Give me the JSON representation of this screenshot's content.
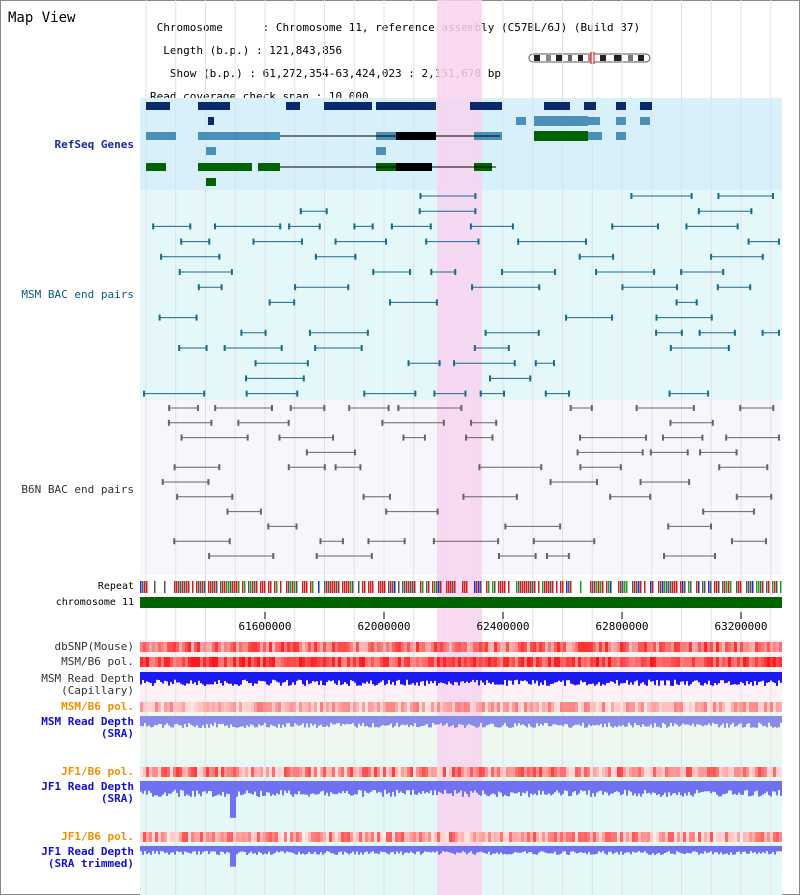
{
  "title": "Map View",
  "info": {
    "chromosome_key": "Chromosome",
    "chromosome_val": "Chromosome 11, reference assembly (C57BL/6J) (Build 37)",
    "length_key": "Length (b.p.)",
    "length_val": "121,843,856",
    "show_key": "Show (b.p.)",
    "show_val": "61,272,354-63,424,023 : 2,151,670 bp",
    "coverage_key": "Read coverage check span",
    "coverage_val": "10,000"
  },
  "tracks": {
    "refseq": "RefSeq Genes",
    "msm_bac": "MSM BAC end pairs",
    "b6n_bac": "B6N BAC end pairs",
    "repeat": "Repeat",
    "chromosome": "chromosome 11",
    "dbsnp": "dbSNP(Mouse)",
    "msm_b6_pol": "MSM/B6 pol.",
    "msm_depth_cap_1": "MSM Read Depth",
    "msm_depth_cap_2": "(Capillary)",
    "msm_b6_pol2": "MSM/B6 pol.",
    "msm_depth_sra_1": "MSM Read Depth",
    "msm_depth_sra_2": "(SRA)",
    "jf1_pol": "JF1/B6 pol.",
    "jf1_depth_sra_1": "JF1 Read Depth",
    "jf1_depth_sra_2": "(SRA)",
    "jf1_pol2": "JF1/B6 pol.",
    "jf1_depth_trim_1": "JF1 Read Depth",
    "jf1_depth_trim_2": "(SRA trimmed)"
  },
  "axis": {
    "ticks": [
      "61600000",
      "62000000",
      "62400000",
      "62800000",
      "63200000"
    ]
  },
  "colors": {
    "refseq_bg": "#d8f0fa",
    "msm_bg": "#e4f8fa",
    "highlight": "#f8d4f0",
    "refseq_label": "#1a2a9c",
    "msm_label": "#0a5a80",
    "b6n_label": "#333333",
    "orange_label": "#f09000",
    "blue_label": "#1010d0",
    "chrom_bar": "#006400"
  }
}
